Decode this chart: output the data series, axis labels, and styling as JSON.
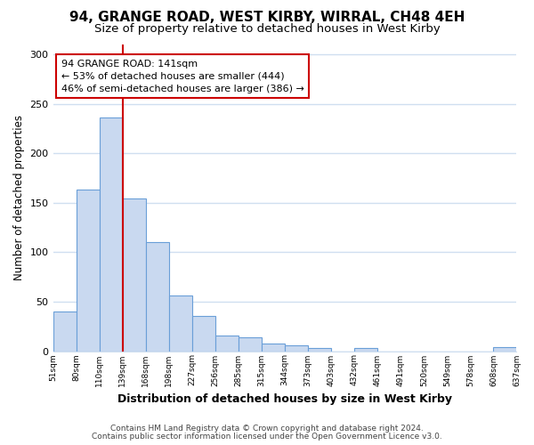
{
  "title1": "94, GRANGE ROAD, WEST KIRBY, WIRRAL, CH48 4EH",
  "title2": "Size of property relative to detached houses in West Kirby",
  "xlabel": "Distribution of detached houses by size in West Kirby",
  "ylabel": "Number of detached properties",
  "bar_color": "#c9d9f0",
  "bar_edge_color": "#6a9fd8",
  "bar_heights": [
    40,
    163,
    236,
    154,
    110,
    56,
    36,
    16,
    14,
    8,
    6,
    3,
    0,
    3,
    0,
    0,
    0,
    0,
    0,
    4
  ],
  "categories": [
    "51sqm",
    "80sqm",
    "110sqm",
    "139sqm",
    "168sqm",
    "198sqm",
    "227sqm",
    "256sqm",
    "285sqm",
    "315sqm",
    "344sqm",
    "373sqm",
    "403sqm",
    "432sqm",
    "461sqm",
    "491sqm",
    "520sqm",
    "549sqm",
    "578sqm",
    "608sqm",
    "637sqm"
  ],
  "vline_color": "#cc0000",
  "annotation_text": "94 GRANGE ROAD: 141sqm\n← 53% of detached houses are smaller (444)\n46% of semi-detached houses are larger (386) →",
  "annotation_box_color": "#ffffff",
  "annotation_box_edge": "#cc0000",
  "ylim": [
    0,
    310
  ],
  "yticks": [
    0,
    50,
    100,
    150,
    200,
    250,
    300
  ],
  "footer1": "Contains HM Land Registry data © Crown copyright and database right 2024.",
  "footer2": "Contains public sector information licensed under the Open Government Licence v3.0.",
  "bg_color": "#ffffff",
  "plot_bg_color": "#ffffff",
  "grid_color": "#d0dff0"
}
